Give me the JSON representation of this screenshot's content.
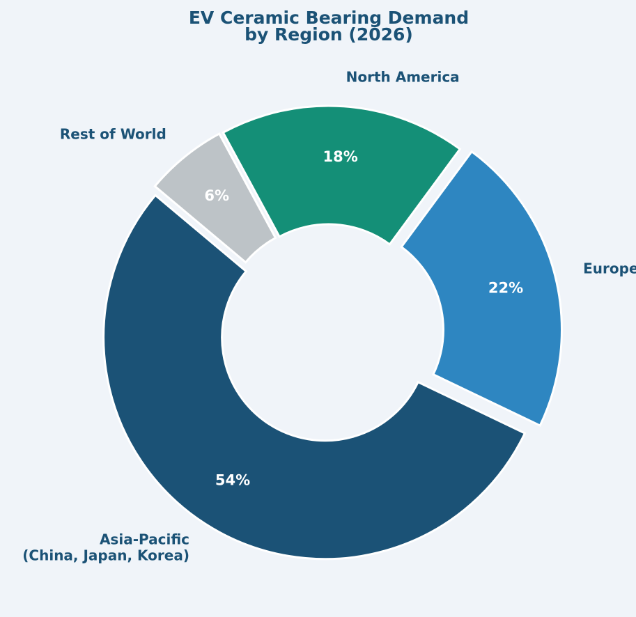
{
  "chart_data": {
    "type": "donut",
    "title": "EV Ceramic Bearing Demand\nby Region (2026)",
    "categories": [
      "Asia-Pacific\n(China, Japan, Korea)",
      "Europe",
      "North America",
      "Rest of World"
    ],
    "values": [
      54,
      22,
      18,
      6
    ],
    "value_labels": [
      "54%",
      "22%",
      "18%",
      "6%"
    ],
    "colors": [
      "#1b5276",
      "#2e86c1",
      "#148f77",
      "#bdc3c7"
    ]
  }
}
